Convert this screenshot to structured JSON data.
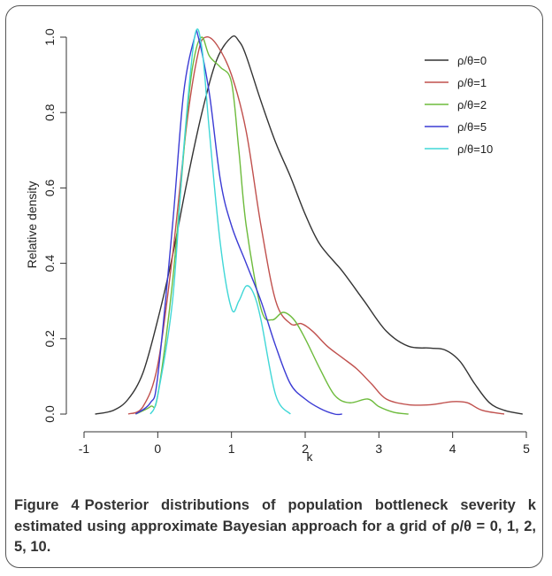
{
  "caption": {
    "figure_label": "Figure 4",
    "text": "Posterior distributions of population bottleneck severity k estimated using approximate Bayesian approach for a grid of ρ/θ = 0, 1, 2, 5, 10."
  },
  "chart_data": {
    "type": "line",
    "title": "",
    "xlabel": "k",
    "ylabel": "Relative density",
    "xlim": [
      -1,
      5
    ],
    "ylim": [
      0.0,
      1.0
    ],
    "xticks": [
      "-1",
      "0",
      "1",
      "2",
      "3",
      "4",
      "5"
    ],
    "yticks": [
      "0.0",
      "0.2",
      "0.4",
      "0.6",
      "0.8",
      "1.0"
    ],
    "grid": false,
    "legend_position": "top-right",
    "series": [
      {
        "name": "ρ/θ=0",
        "color": "#333333",
        "x": [
          -0.85,
          -0.6,
          -0.4,
          -0.2,
          0.0,
          0.2,
          0.4,
          0.6,
          0.8,
          1.0,
          1.1,
          1.2,
          1.4,
          1.6,
          1.8,
          2.0,
          2.2,
          2.5,
          2.8,
          3.1,
          3.4,
          3.7,
          3.9,
          4.1,
          4.3,
          4.5,
          4.7,
          4.95
        ],
        "y": [
          0.0,
          0.01,
          0.04,
          0.11,
          0.25,
          0.42,
          0.62,
          0.8,
          0.94,
          1.0,
          0.99,
          0.95,
          0.83,
          0.72,
          0.63,
          0.53,
          0.45,
          0.38,
          0.3,
          0.22,
          0.18,
          0.175,
          0.17,
          0.14,
          0.08,
          0.03,
          0.01,
          0.0
        ]
      },
      {
        "name": "ρ/θ=1",
        "color": "#c0504d",
        "x": [
          -0.4,
          -0.2,
          0.0,
          0.2,
          0.4,
          0.55,
          0.65,
          0.8,
          1.0,
          1.2,
          1.4,
          1.6,
          1.8,
          1.95,
          2.1,
          2.3,
          2.5,
          2.7,
          2.9,
          3.1,
          3.4,
          3.7,
          4.0,
          4.2,
          4.4,
          4.7
        ],
        "y": [
          0.0,
          0.02,
          0.13,
          0.42,
          0.78,
          0.96,
          1.0,
          0.98,
          0.9,
          0.75,
          0.5,
          0.3,
          0.24,
          0.24,
          0.22,
          0.18,
          0.15,
          0.12,
          0.08,
          0.04,
          0.025,
          0.025,
          0.033,
          0.03,
          0.01,
          0.0
        ]
      },
      {
        "name": "ρ/θ=2",
        "color": "#6dbb3c",
        "x": [
          -0.3,
          -0.1,
          0.0,
          0.2,
          0.4,
          0.5,
          0.6,
          0.7,
          0.85,
          1.0,
          1.1,
          1.2,
          1.4,
          1.55,
          1.7,
          1.85,
          2.0,
          2.2,
          2.4,
          2.6,
          2.85,
          3.0,
          3.2,
          3.4
        ],
        "y": [
          0.0,
          0.02,
          0.05,
          0.35,
          0.8,
          0.95,
          1.0,
          0.95,
          0.92,
          0.88,
          0.7,
          0.5,
          0.28,
          0.25,
          0.27,
          0.25,
          0.2,
          0.12,
          0.05,
          0.03,
          0.04,
          0.02,
          0.005,
          0.0
        ]
      },
      {
        "name": "ρ/θ=5",
        "color": "#3b3bd4",
        "x": [
          -0.3,
          -0.1,
          0.0,
          0.2,
          0.35,
          0.5,
          0.55,
          0.7,
          0.85,
          1.0,
          1.2,
          1.4,
          1.6,
          1.8,
          2.0,
          2.2,
          2.4,
          2.5
        ],
        "y": [
          0.0,
          0.03,
          0.1,
          0.5,
          0.85,
          1.0,
          1.0,
          0.85,
          0.62,
          0.5,
          0.4,
          0.3,
          0.18,
          0.08,
          0.04,
          0.015,
          0.0,
          0.0
        ]
      },
      {
        "name": "ρ/θ=10",
        "color": "#40d7d7",
        "x": [
          -0.1,
          0.0,
          0.2,
          0.35,
          0.5,
          0.6,
          0.7,
          0.85,
          1.0,
          1.1,
          1.2,
          1.3,
          1.4,
          1.6,
          1.8
        ],
        "y": [
          0.0,
          0.05,
          0.3,
          0.7,
          1.0,
          0.97,
          0.75,
          0.45,
          0.28,
          0.3,
          0.34,
          0.32,
          0.25,
          0.05,
          0.0
        ]
      }
    ]
  }
}
